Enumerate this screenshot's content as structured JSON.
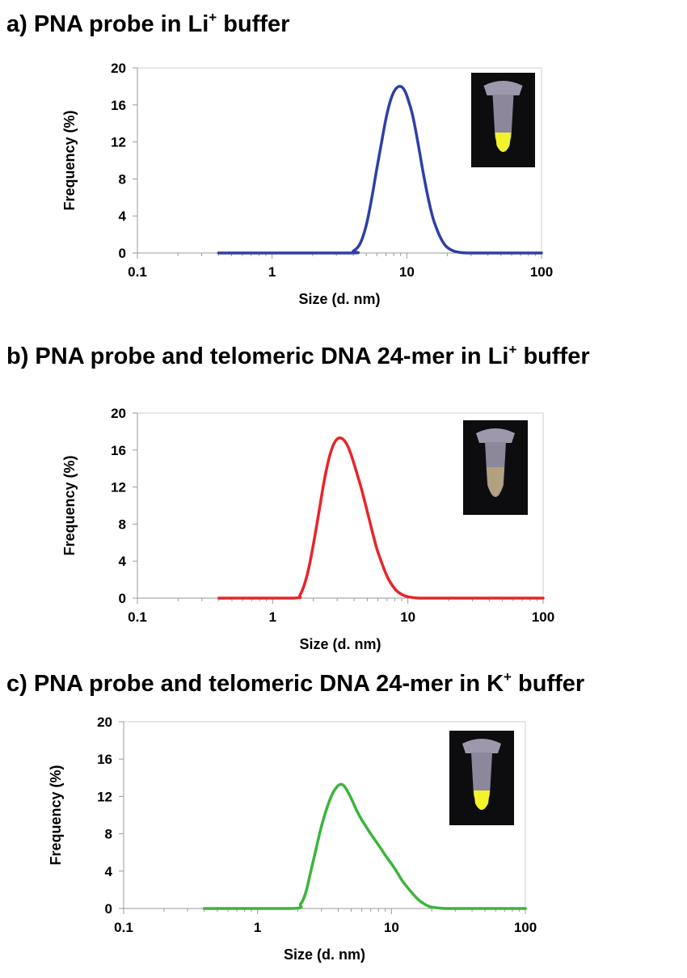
{
  "panels": [
    {
      "title_main": "a) PNA probe in Li",
      "title_sup": "+",
      "title_end": " buffer"
    },
    {
      "title_main": "b) PNA probe and telomeric DNA 24-mer in Li",
      "title_sup": "+",
      "title_end": " buffer"
    },
    {
      "title_main": "c) PNA probe and telomeric DNA 24-mer in K",
      "title_sup": "+",
      "title_end": " buffer"
    }
  ],
  "chart_data": [
    {
      "type": "line",
      "title": "a) PNA probe in Li+ buffer",
      "xlabel": "Size (d. nm)",
      "ylabel": "Frequency (%)",
      "xscale": "log",
      "xlim": [
        0.1,
        100
      ],
      "ylim": [
        0,
        20
      ],
      "xticks": [
        "0.1",
        "1",
        "10",
        "100"
      ],
      "yticks": [
        "0",
        "4",
        "8",
        "12",
        "16",
        "20"
      ],
      "grid": false,
      "inset": "tube-photo-yellow",
      "series": [
        {
          "color": "#2f3fa6",
          "x": [
            0.4,
            3.6,
            4.0,
            4.5,
            5.0,
            5.5,
            6.0,
            6.5,
            7.0,
            7.5,
            8.0,
            8.5,
            9.0,
            9.5,
            10.0,
            11.0,
            12.0,
            13.0,
            14.0,
            15.0,
            16.0,
            18.0,
            20.0,
            23.0,
            28.0,
            40.0,
            60.0,
            100.0
          ],
          "y": [
            0,
            0,
            0.2,
            1.0,
            3.0,
            6.0,
            9.2,
            12.0,
            14.5,
            16.3,
            17.4,
            17.9,
            18.0,
            17.7,
            17.0,
            15.0,
            12.2,
            9.3,
            6.8,
            4.8,
            3.3,
            1.5,
            0.6,
            0.15,
            0,
            0,
            0,
            0
          ]
        }
      ]
    },
    {
      "type": "line",
      "title": "b) PNA probe and telomeric DNA 24-mer in Li+ buffer",
      "xlabel": "Size (d. nm)",
      "ylabel": "Frequency (%)",
      "xscale": "log",
      "xlim": [
        0.1,
        100
      ],
      "ylim": [
        0,
        20
      ],
      "xticks": [
        "0.1",
        "1",
        "10",
        "100"
      ],
      "yticks": [
        "0",
        "4",
        "8",
        "12",
        "16",
        "20"
      ],
      "grid": false,
      "inset": "tube-photo-pale",
      "series": [
        {
          "color": "#e8242a",
          "x": [
            0.4,
            1.4,
            1.6,
            1.8,
            2.0,
            2.2,
            2.4,
            2.6,
            2.8,
            3.0,
            3.2,
            3.4,
            3.6,
            3.8,
            4.0,
            4.5,
            5.0,
            5.5,
            6.0,
            7.0,
            8.0,
            9.0,
            10.0,
            12.0,
            15.0,
            30.0,
            100.0
          ],
          "y": [
            0,
            0,
            0.4,
            2.5,
            5.8,
            9.3,
            12.6,
            15.0,
            16.5,
            17.2,
            17.3,
            17.0,
            16.4,
            15.5,
            14.5,
            12.0,
            9.4,
            7.0,
            5.0,
            2.4,
            1.0,
            0.4,
            0.15,
            0,
            0,
            0,
            0
          ]
        }
      ]
    },
    {
      "type": "line",
      "title": "c) PNA probe and telomeric DNA 24-mer in K+ buffer",
      "xlabel": "Size (d. nm)",
      "ylabel": "Frequency (%)",
      "xscale": "log",
      "xlim": [
        0.1,
        100
      ],
      "ylim": [
        0,
        20
      ],
      "xticks": [
        "0.1",
        "1",
        "10",
        "100"
      ],
      "yticks": [
        "0",
        "4",
        "8",
        "12",
        "16",
        "20"
      ],
      "grid": false,
      "inset": "tube-photo-yellow",
      "series": [
        {
          "color": "#3cb43c",
          "x": [
            0.4,
            1.8,
            2.1,
            2.3,
            2.5,
            2.8,
            3.0,
            3.3,
            3.6,
            3.9,
            4.2,
            4.5,
            5.0,
            5.5,
            6.0,
            7.0,
            8.0,
            9.0,
            10.0,
            11.0,
            12.0,
            14.0,
            16.0,
            18.0,
            20.0,
            25.0,
            40.0,
            100.0
          ],
          "y": [
            0,
            0,
            0.5,
            1.8,
            4.0,
            7.0,
            8.8,
            10.8,
            12.2,
            13.0,
            13.3,
            13.0,
            11.8,
            10.5,
            9.5,
            8.0,
            6.8,
            5.7,
            4.8,
            3.9,
            3.0,
            1.8,
            0.9,
            0.4,
            0.15,
            0,
            0,
            0
          ]
        }
      ]
    }
  ]
}
